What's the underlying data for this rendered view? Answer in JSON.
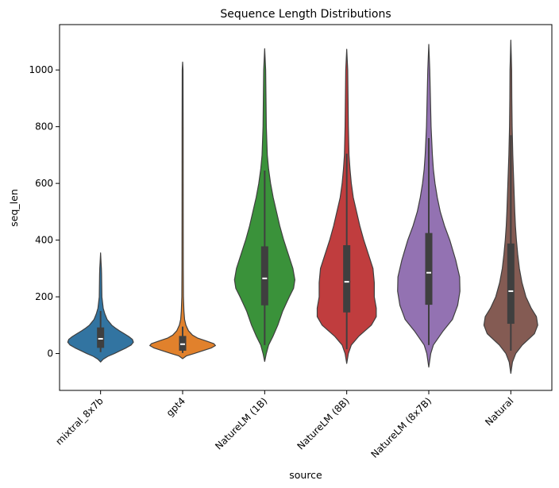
{
  "chart_data": {
    "type": "violin",
    "title": "Sequence Length Distributions",
    "xlabel": "source",
    "ylabel": "seq_len",
    "ylim": [
      -130,
      1160
    ],
    "yticks": [
      0,
      200,
      400,
      600,
      800,
      1000
    ],
    "yticks_text": [
      "0",
      "200",
      "400",
      "600",
      "800",
      "1000"
    ],
    "categories": [
      "mixtral_8x7b",
      "gpt4",
      "NatureLM (1B)",
      "NatureLM (8B)",
      "NatureLM (8x7B)",
      "Natural"
    ],
    "series": [
      {
        "name": "mixtral_8x7b",
        "color": "#3274a1",
        "min": -30,
        "max": 355,
        "q1": 20,
        "median": 52,
        "q3": 92,
        "whisker_low": 5,
        "whisker_high": 150,
        "profile": [
          [
            -30,
            0
          ],
          [
            -20,
            0.08
          ],
          [
            -10,
            0.22
          ],
          [
            0,
            0.42
          ],
          [
            10,
            0.6
          ],
          [
            20,
            0.78
          ],
          [
            30,
            0.93
          ],
          [
            40,
            1.0
          ],
          [
            50,
            0.97
          ],
          [
            60,
            0.86
          ],
          [
            70,
            0.72
          ],
          [
            80,
            0.58
          ],
          [
            90,
            0.45
          ],
          [
            100,
            0.34
          ],
          [
            120,
            0.2
          ],
          [
            140,
            0.13
          ],
          [
            160,
            0.08
          ],
          [
            180,
            0.06
          ],
          [
            200,
            0.04
          ],
          [
            240,
            0.035
          ],
          [
            280,
            0.03
          ],
          [
            300,
            0.025
          ],
          [
            320,
            0.015
          ],
          [
            355,
            0
          ]
        ]
      },
      {
        "name": "gpt4",
        "color": "#e1812c",
        "min": -18,
        "max": 1028,
        "q1": 10,
        "median": 33,
        "q3": 62,
        "whisker_low": 2,
        "whisker_high": 95,
        "profile": [
          [
            -18,
            0
          ],
          [
            -8,
            0.12
          ],
          [
            0,
            0.35
          ],
          [
            10,
            0.62
          ],
          [
            20,
            0.88
          ],
          [
            28,
            1.0
          ],
          [
            35,
            0.95
          ],
          [
            45,
            0.7
          ],
          [
            55,
            0.45
          ],
          [
            65,
            0.3
          ],
          [
            80,
            0.18
          ],
          [
            100,
            0.1
          ],
          [
            120,
            0.06
          ],
          [
            150,
            0.04
          ],
          [
            200,
            0.025
          ],
          [
            300,
            0.02
          ],
          [
            500,
            0.018
          ],
          [
            800,
            0.016
          ],
          [
            1000,
            0.012
          ],
          [
            1028,
            0
          ]
        ]
      },
      {
        "name": "NatureLM (1B)",
        "color": "#3a923a",
        "min": -28,
        "max": 1075,
        "q1": 170,
        "median": 265,
        "q3": 378,
        "whisker_low": 30,
        "whisker_high": 645,
        "profile": [
          [
            -28,
            0
          ],
          [
            0,
            0.05
          ],
          [
            30,
            0.12
          ],
          [
            60,
            0.25
          ],
          [
            100,
            0.4
          ],
          [
            150,
            0.55
          ],
          [
            200,
            0.75
          ],
          [
            230,
            0.88
          ],
          [
            260,
            0.92
          ],
          [
            300,
            0.86
          ],
          [
            350,
            0.72
          ],
          [
            400,
            0.58
          ],
          [
            450,
            0.46
          ],
          [
            500,
            0.36
          ],
          [
            550,
            0.26
          ],
          [
            600,
            0.18
          ],
          [
            650,
            0.12
          ],
          [
            700,
            0.08
          ],
          [
            800,
            0.05
          ],
          [
            900,
            0.04
          ],
          [
            1000,
            0.03
          ],
          [
            1075,
            0
          ]
        ]
      },
      {
        "name": "NatureLM (8B)",
        "color": "#c03d3e",
        "min": -35,
        "max": 1073,
        "q1": 145,
        "median": 253,
        "q3": 382,
        "whisker_low": 15,
        "whisker_high": 705,
        "profile": [
          [
            -35,
            0
          ],
          [
            0,
            0.05
          ],
          [
            30,
            0.14
          ],
          [
            60,
            0.36
          ],
          [
            100,
            0.75
          ],
          [
            130,
            0.9
          ],
          [
            160,
            0.9
          ],
          [
            200,
            0.84
          ],
          [
            250,
            0.84
          ],
          [
            300,
            0.8
          ],
          [
            350,
            0.66
          ],
          [
            400,
            0.52
          ],
          [
            450,
            0.4
          ],
          [
            500,
            0.3
          ],
          [
            550,
            0.2
          ],
          [
            600,
            0.14
          ],
          [
            650,
            0.1
          ],
          [
            700,
            0.07
          ],
          [
            800,
            0.05
          ],
          [
            900,
            0.04
          ],
          [
            1000,
            0.03
          ],
          [
            1073,
            0
          ]
        ]
      },
      {
        "name": "NatureLM (8x7B)",
        "color": "#9372b2",
        "min": -48,
        "max": 1090,
        "q1": 172,
        "median": 285,
        "q3": 425,
        "whisker_low": 30,
        "whisker_high": 760,
        "profile": [
          [
            -48,
            0
          ],
          [
            0,
            0.06
          ],
          [
            30,
            0.14
          ],
          [
            80,
            0.44
          ],
          [
            120,
            0.72
          ],
          [
            170,
            0.88
          ],
          [
            220,
            0.95
          ],
          [
            270,
            0.94
          ],
          [
            330,
            0.82
          ],
          [
            400,
            0.64
          ],
          [
            450,
            0.48
          ],
          [
            500,
            0.35
          ],
          [
            550,
            0.26
          ],
          [
            600,
            0.19
          ],
          [
            650,
            0.14
          ],
          [
            700,
            0.11
          ],
          [
            800,
            0.07
          ],
          [
            900,
            0.05
          ],
          [
            1000,
            0.03
          ],
          [
            1090,
            0
          ]
        ]
      },
      {
        "name": "Natural",
        "color": "#845b53",
        "min": -70,
        "max": 1105,
        "q1": 105,
        "median": 220,
        "q3": 388,
        "whisker_low": 10,
        "whisker_high": 770,
        "profile": [
          [
            -70,
            0
          ],
          [
            -30,
            0.05
          ],
          [
            0,
            0.15
          ],
          [
            30,
            0.35
          ],
          [
            70,
            0.72
          ],
          [
            100,
            0.82
          ],
          [
            130,
            0.78
          ],
          [
            160,
            0.62
          ],
          [
            200,
            0.46
          ],
          [
            250,
            0.34
          ],
          [
            300,
            0.26
          ],
          [
            350,
            0.21
          ],
          [
            400,
            0.17
          ],
          [
            450,
            0.14
          ],
          [
            500,
            0.12
          ],
          [
            600,
            0.09
          ],
          [
            700,
            0.06
          ],
          [
            800,
            0.04
          ],
          [
            900,
            0.03
          ],
          [
            1000,
            0.025
          ],
          [
            1105,
            0
          ]
        ]
      }
    ]
  }
}
